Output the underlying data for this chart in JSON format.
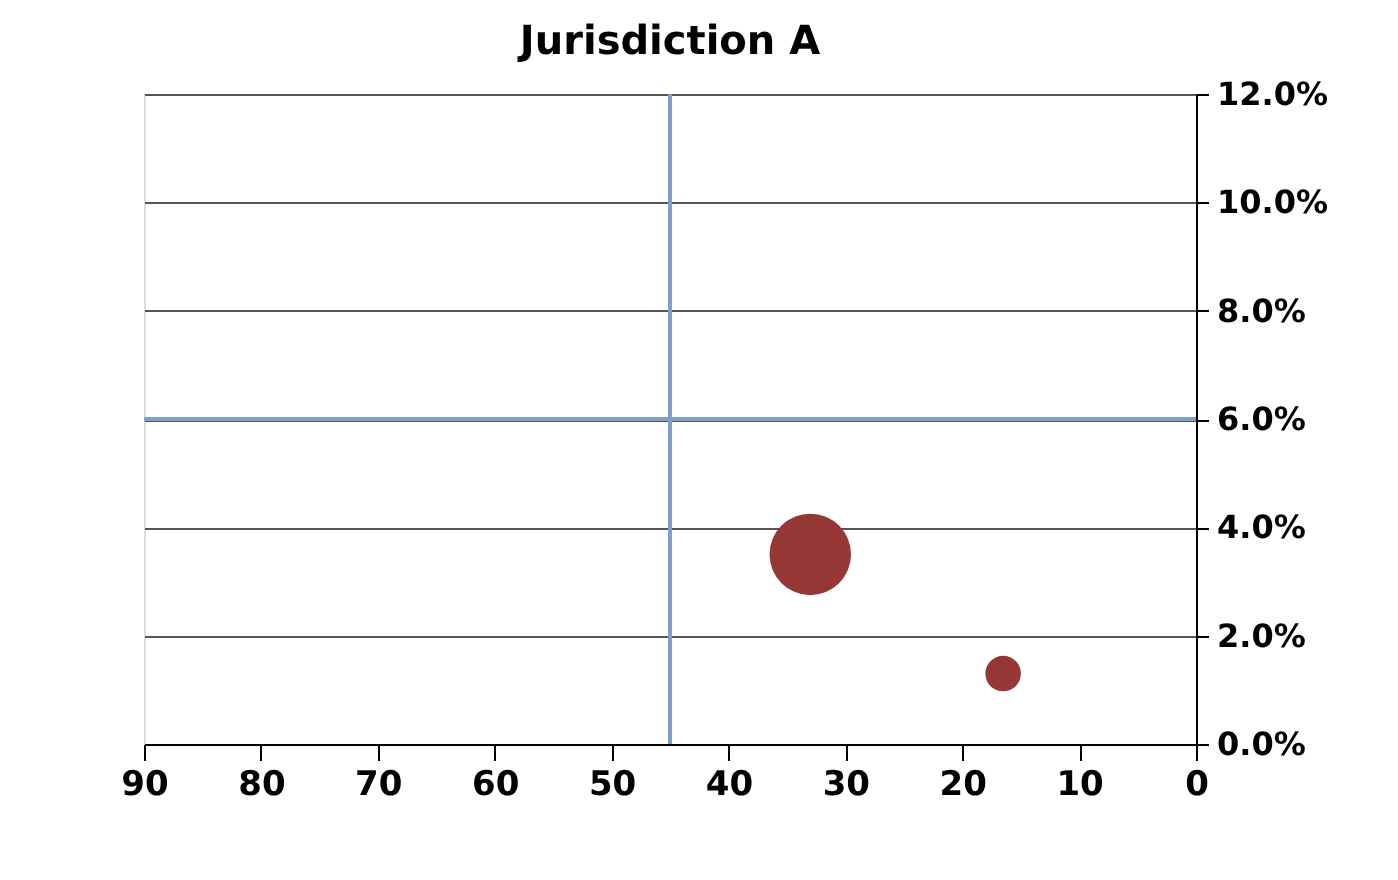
{
  "chart_data": {
    "type": "bubble",
    "title": "Jurisdiction A",
    "x": [
      33,
      16.5
    ],
    "series": [
      {
        "color": "#953735",
        "values": [
          3.5,
          1.3
        ],
        "sizes": [
          1,
          0.19
        ]
      }
    ],
    "xlim": [
      90,
      0
    ],
    "xticks": [
      90,
      80,
      70,
      60,
      50,
      40,
      30,
      20,
      10,
      0
    ],
    "ylim": [
      0,
      12
    ],
    "yticks": [
      {
        "value": 0,
        "label": "0.0%"
      },
      {
        "value": 2,
        "label": "2.0%"
      },
      {
        "value": 4,
        "label": "4.0%"
      },
      {
        "value": 6,
        "label": "6.0%"
      },
      {
        "value": 8,
        "label": "8.0%"
      },
      {
        "value": 10,
        "label": "10.0%"
      },
      {
        "value": 12,
        "label": "12.0%"
      }
    ],
    "ref_lines": [
      {
        "axis": "x",
        "value": 45,
        "color": "#7f9fcf"
      },
      {
        "axis": "y",
        "value": 6,
        "color": "#7f9fcf"
      }
    ],
    "grid": "y"
  }
}
